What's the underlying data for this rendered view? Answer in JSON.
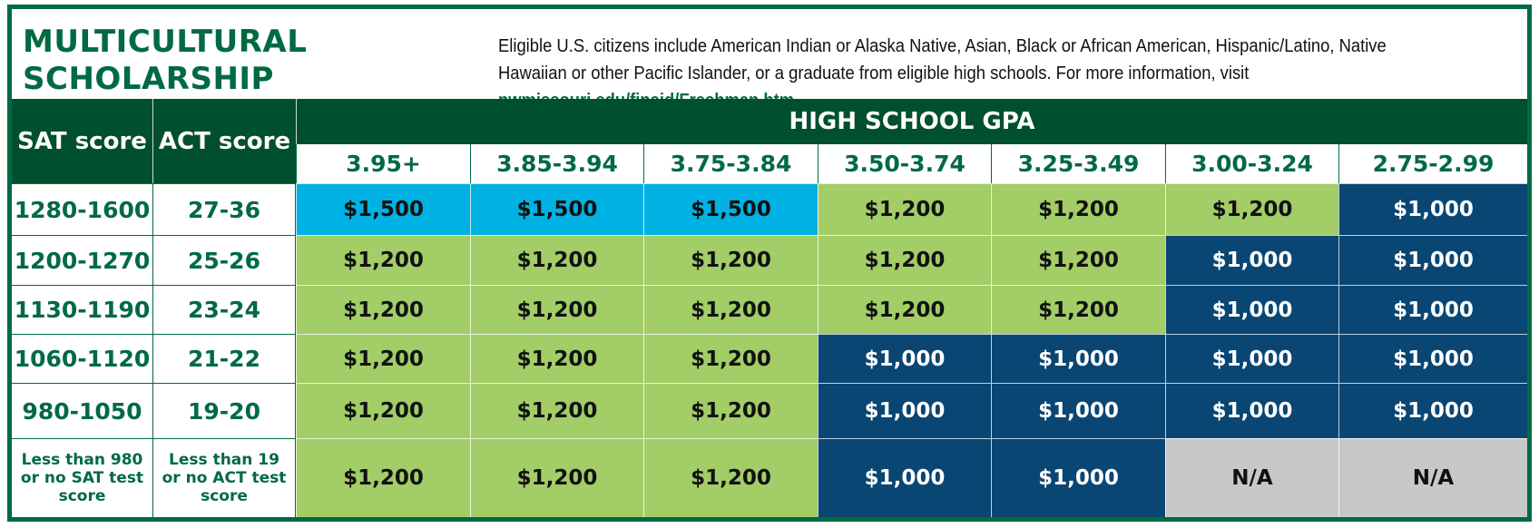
{
  "title": {
    "line1": "MULTICULTURAL",
    "line2": "SCHOLARSHIP"
  },
  "info": {
    "text": "Eligible U.S. citizens include American Indian or Alaska Native, Asian, Black or African American, Hispanic/Latino, Native Hawaiian or other Pacific Islander, or a graduate from eligible high schools. For more information, visit ",
    "link": "nwmissouri.edu/finaid/Freshman.htm"
  },
  "table": {
    "sat_header": "SAT score",
    "act_header": "ACT score",
    "gpa_header": "HIGH SCHOOL GPA",
    "gpa_ranges": [
      "3.95+",
      "3.85-3.94",
      "3.75-3.84",
      "3.50-3.74",
      "3.25-3.49",
      "3.00-3.24",
      "2.75-2.99"
    ],
    "rows": [
      {
        "sat": "1280-1600",
        "act": "27-36",
        "values": [
          "$1,500",
          "$1,500",
          "$1,500",
          "$1,200",
          "$1,200",
          "$1,200",
          "$1,000"
        ],
        "tones": [
          "blue",
          "blue",
          "blue",
          "green",
          "green",
          "green",
          "navy"
        ]
      },
      {
        "sat": "1200-1270",
        "act": "25-26",
        "values": [
          "$1,200",
          "$1,200",
          "$1,200",
          "$1,200",
          "$1,200",
          "$1,000",
          "$1,000"
        ],
        "tones": [
          "green",
          "green",
          "green",
          "green",
          "green",
          "navy",
          "navy"
        ]
      },
      {
        "sat": "1130-1190",
        "act": "23-24",
        "values": [
          "$1,200",
          "$1,200",
          "$1,200",
          "$1,200",
          "$1,200",
          "$1,000",
          "$1,000"
        ],
        "tones": [
          "green",
          "green",
          "green",
          "green",
          "green",
          "navy",
          "navy"
        ]
      },
      {
        "sat": "1060-1120",
        "act": "21-22",
        "values": [
          "$1,200",
          "$1,200",
          "$1,200",
          "$1,000",
          "$1,000",
          "$1,000",
          "$1,000"
        ],
        "tones": [
          "green",
          "green",
          "green",
          "navy",
          "navy",
          "navy",
          "navy"
        ]
      },
      {
        "sat": "980-1050",
        "act": "19-20",
        "values": [
          "$1,200",
          "$1,200",
          "$1,200",
          "$1,000",
          "$1,000",
          "$1,000",
          "$1,000"
        ],
        "tones": [
          "green",
          "green",
          "green",
          "navy",
          "navy",
          "navy",
          "navy"
        ]
      },
      {
        "sat": "Less than 980 or no SAT test score",
        "act": "Less than 19 or no ACT test score",
        "values": [
          "$1,200",
          "$1,200",
          "$1,200",
          "$1,000",
          "$1,000",
          "N/A",
          "N/A"
        ],
        "tones": [
          "green",
          "green",
          "green",
          "navy",
          "navy",
          "gray",
          "gray"
        ]
      }
    ]
  },
  "colors": {
    "brand_green": "#006a43",
    "header_dark_green": "#004f2e",
    "tier_1500": "#00b2e3",
    "tier_1200": "#a2cd67",
    "tier_1000": "#0a4673",
    "not_available": "#c7c8c9"
  }
}
